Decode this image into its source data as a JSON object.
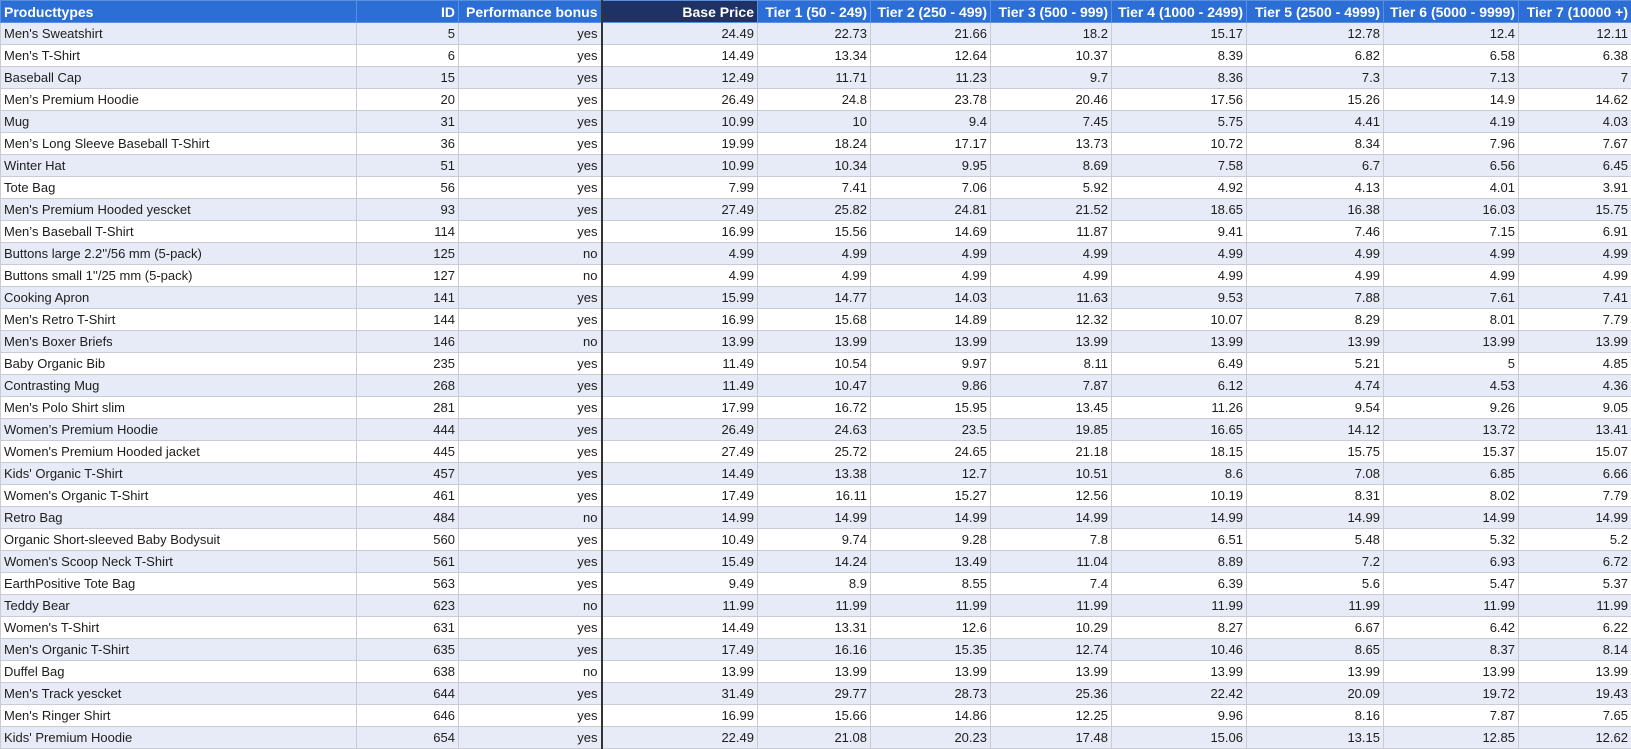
{
  "table": {
    "columns": [
      "Producttypes",
      "ID",
      "Performance bonus",
      "Base Price",
      "Tier 1 (50 - 249)",
      "Tier 2 (250 - 499)",
      "Tier 3 (500 - 999)",
      "Tier 4 (1000 - 2499)",
      "Tier 5 (2500 - 4999)",
      "Tier 6 (5000 - 9999)",
      "Tier 7 (10000 +)"
    ],
    "rows": [
      [
        "Men's Sweatshirt",
        5,
        "yes",
        24.49,
        22.73,
        21.66,
        18.2,
        15.17,
        12.78,
        12.4,
        12.11
      ],
      [
        "Men's T-Shirt",
        6,
        "yes",
        14.49,
        13.34,
        12.64,
        10.37,
        8.39,
        6.82,
        6.58,
        6.38
      ],
      [
        "Baseball Cap",
        15,
        "yes",
        12.49,
        11.71,
        11.23,
        9.7,
        8.36,
        7.3,
        7.13,
        7
      ],
      [
        "Men’s Premium Hoodie",
        20,
        "yes",
        26.49,
        24.8,
        23.78,
        20.46,
        17.56,
        15.26,
        14.9,
        14.62
      ],
      [
        "Mug",
        31,
        "yes",
        10.99,
        10,
        9.4,
        7.45,
        5.75,
        4.41,
        4.19,
        4.03
      ],
      [
        "Men’s Long Sleeve Baseball T-Shirt",
        36,
        "yes",
        19.99,
        18.24,
        17.17,
        13.73,
        10.72,
        8.34,
        7.96,
        7.67
      ],
      [
        "Winter Hat",
        51,
        "yes",
        10.99,
        10.34,
        9.95,
        8.69,
        7.58,
        6.7,
        6.56,
        6.45
      ],
      [
        "Tote Bag",
        56,
        "yes",
        7.99,
        7.41,
        7.06,
        5.92,
        4.92,
        4.13,
        4.01,
        3.91
      ],
      [
        "Men's Premium Hooded yescket",
        93,
        "yes",
        27.49,
        25.82,
        24.81,
        21.52,
        18.65,
        16.38,
        16.03,
        15.75
      ],
      [
        "Men’s Baseball T-Shirt",
        114,
        "yes",
        16.99,
        15.56,
        14.69,
        11.87,
        9.41,
        7.46,
        7.15,
        6.91
      ],
      [
        "Buttons large 2.2''/56 mm (5-pack)",
        125,
        "no",
        4.99,
        4.99,
        4.99,
        4.99,
        4.99,
        4.99,
        4.99,
        4.99
      ],
      [
        "Buttons small 1''/25 mm (5-pack)",
        127,
        "no",
        4.99,
        4.99,
        4.99,
        4.99,
        4.99,
        4.99,
        4.99,
        4.99
      ],
      [
        "Cooking Apron",
        141,
        "yes",
        15.99,
        14.77,
        14.03,
        11.63,
        9.53,
        7.88,
        7.61,
        7.41
      ],
      [
        "Men's Retro T-Shirt",
        144,
        "yes",
        16.99,
        15.68,
        14.89,
        12.32,
        10.07,
        8.29,
        8.01,
        7.79
      ],
      [
        "Men's Boxer Briefs",
        146,
        "no",
        13.99,
        13.99,
        13.99,
        13.99,
        13.99,
        13.99,
        13.99,
        13.99
      ],
      [
        "Baby Organic Bib",
        235,
        "yes",
        11.49,
        10.54,
        9.97,
        8.11,
        6.49,
        5.21,
        5,
        4.85
      ],
      [
        "Contrasting Mug",
        268,
        "yes",
        11.49,
        10.47,
        9.86,
        7.87,
        6.12,
        4.74,
        4.53,
        4.36
      ],
      [
        "Men's Polo Shirt slim",
        281,
        "yes",
        17.99,
        16.72,
        15.95,
        13.45,
        11.26,
        9.54,
        9.26,
        9.05
      ],
      [
        "Women’s Premium Hoodie",
        444,
        "yes",
        26.49,
        24.63,
        23.5,
        19.85,
        16.65,
        14.12,
        13.72,
        13.41
      ],
      [
        "Women's Premium Hooded jacket",
        445,
        "yes",
        27.49,
        25.72,
        24.65,
        21.18,
        18.15,
        15.75,
        15.37,
        15.07
      ],
      [
        "Kids' Organic T-Shirt",
        457,
        "yes",
        14.49,
        13.38,
        12.7,
        10.51,
        8.6,
        7.08,
        6.85,
        6.66
      ],
      [
        "Women's Organic T-Shirt",
        461,
        "yes",
        17.49,
        16.11,
        15.27,
        12.56,
        10.19,
        8.31,
        8.02,
        7.79
      ],
      [
        "Retro Bag",
        484,
        "no",
        14.99,
        14.99,
        14.99,
        14.99,
        14.99,
        14.99,
        14.99,
        14.99
      ],
      [
        "Organic Short-sleeved Baby Bodysuit",
        560,
        "yes",
        10.49,
        9.74,
        9.28,
        7.8,
        6.51,
        5.48,
        5.32,
        5.2
      ],
      [
        "Women's Scoop Neck T-Shirt",
        561,
        "yes",
        15.49,
        14.24,
        13.49,
        11.04,
        8.89,
        7.2,
        6.93,
        6.72
      ],
      [
        "EarthPositive Tote Bag",
        563,
        "yes",
        9.49,
        8.9,
        8.55,
        7.4,
        6.39,
        5.6,
        5.47,
        5.37
      ],
      [
        "Teddy Bear",
        623,
        "no",
        11.99,
        11.99,
        11.99,
        11.99,
        11.99,
        11.99,
        11.99,
        11.99
      ],
      [
        "Women's T-Shirt",
        631,
        "yes",
        14.49,
        13.31,
        12.6,
        10.29,
        8.27,
        6.67,
        6.42,
        6.22
      ],
      [
        "Men's Organic T-Shirt",
        635,
        "yes",
        17.49,
        16.16,
        15.35,
        12.74,
        10.46,
        8.65,
        8.37,
        8.14
      ],
      [
        "Duffel Bag",
        638,
        "no",
        13.99,
        13.99,
        13.99,
        13.99,
        13.99,
        13.99,
        13.99,
        13.99
      ],
      [
        "Men's Track yescket",
        644,
        "yes",
        31.49,
        29.77,
        28.73,
        25.36,
        22.42,
        20.09,
        19.72,
        19.43
      ],
      [
        "Men's Ringer Shirt",
        646,
        "yes",
        16.99,
        15.66,
        14.86,
        12.25,
        9.96,
        8.16,
        7.87,
        7.65
      ],
      [
        "Kids' Premium Hoodie",
        654,
        "yes",
        22.49,
        21.08,
        20.23,
        17.48,
        15.06,
        13.15,
        12.85,
        12.62
      ]
    ]
  }
}
